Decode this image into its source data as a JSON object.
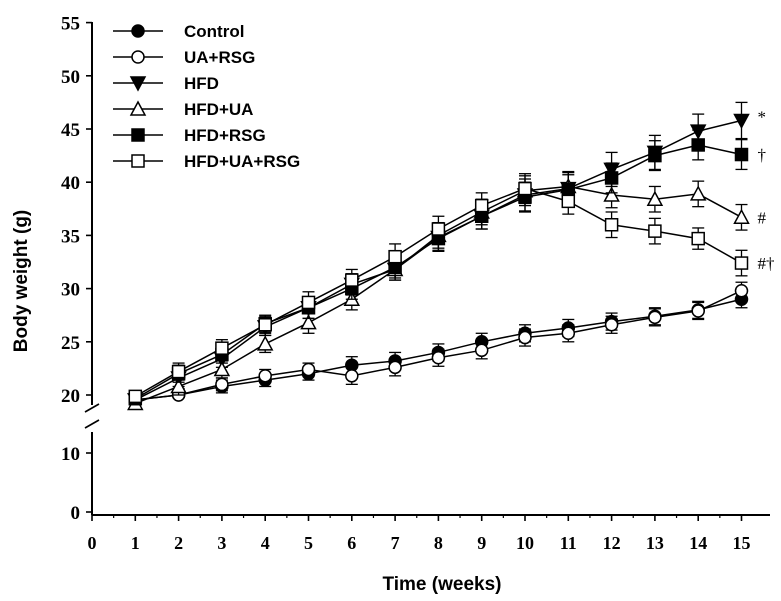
{
  "chart_data": {
    "type": "line",
    "xlabel": "Time (weeks)",
    "ylabel": "Body weight (g)",
    "xlim": [
      0,
      15
    ],
    "x_ticks": [
      0,
      1,
      2,
      3,
      4,
      5,
      6,
      7,
      8,
      9,
      10,
      11,
      12,
      13,
      14,
      15
    ],
    "y_ticks_lower": [
      0,
      10
    ],
    "y_ticks_upper": [
      20,
      25,
      30,
      35,
      40,
      45,
      50,
      55
    ],
    "y_axis_break": [
      10,
      20
    ],
    "grid": false,
    "legend_position": "top-left",
    "x": [
      1,
      2,
      3,
      4,
      5,
      6,
      7,
      8,
      9,
      10,
      11,
      12,
      13,
      14,
      15
    ],
    "series": [
      {
        "name": "Control",
        "marker": "circle-filled",
        "values": [
          19.0,
          20.0,
          20.8,
          21.4,
          22.0,
          22.8,
          23.2,
          24.0,
          25.0,
          25.8,
          26.3,
          26.9,
          27.4,
          28.0,
          29.0
        ],
        "errors": [
          0.6,
          0.6,
          0.6,
          0.6,
          0.6,
          0.8,
          0.8,
          0.8,
          0.8,
          0.8,
          0.8,
          0.8,
          0.8,
          0.8,
          0.8
        ]
      },
      {
        "name": "UA+RSG",
        "marker": "circle-open",
        "values": [
          19.0,
          20.0,
          21.0,
          21.8,
          22.4,
          21.8,
          22.6,
          23.5,
          24.2,
          25.4,
          25.8,
          26.6,
          27.3,
          27.9,
          29.8
        ],
        "errors": [
          0.6,
          0.6,
          0.6,
          0.6,
          0.6,
          0.8,
          0.8,
          0.8,
          0.8,
          0.8,
          0.8,
          0.8,
          0.8,
          0.8,
          0.8
        ]
      },
      {
        "name": "HFD",
        "marker": "triangle-down-filled",
        "values": [
          19.0,
          21.6,
          23.4,
          26.4,
          28.2,
          30.4,
          31.8,
          34.8,
          36.8,
          38.8,
          39.4,
          41.2,
          42.8,
          44.8,
          45.8
        ],
        "errors": [
          0.6,
          0.8,
          0.8,
          0.8,
          1.0,
          1.0,
          1.0,
          1.2,
          1.2,
          1.5,
          1.5,
          1.6,
          1.6,
          1.6,
          1.7
        ]
      },
      {
        "name": "HFD+UA",
        "marker": "triangle-up-open",
        "values": [
          18.4,
          20.8,
          22.4,
          24.8,
          26.8,
          29.0,
          31.8,
          35.0,
          37.2,
          39.2,
          39.6,
          38.8,
          38.4,
          38.9,
          36.7
        ],
        "errors": [
          0.6,
          0.8,
          0.8,
          0.8,
          1.0,
          1.0,
          1.0,
          1.2,
          1.2,
          1.4,
          1.4,
          1.2,
          1.2,
          1.2,
          1.2
        ]
      },
      {
        "name": "HFD+RSG",
        "marker": "square-filled",
        "values": [
          19.2,
          22.0,
          23.8,
          26.7,
          28.2,
          30.0,
          32.0,
          34.7,
          36.8,
          38.6,
          39.3,
          40.4,
          42.5,
          43.5,
          42.6
        ],
        "errors": [
          0.6,
          0.8,
          0.8,
          0.8,
          1.0,
          1.0,
          1.0,
          1.2,
          1.2,
          1.4,
          1.4,
          1.4,
          1.4,
          1.4,
          1.4
        ]
      },
      {
        "name": "HFD+UA+RSG",
        "marker": "square-open",
        "values": [
          19.6,
          22.2,
          24.4,
          26.6,
          28.7,
          30.8,
          33.0,
          35.6,
          37.8,
          39.4,
          38.2,
          36.0,
          35.4,
          34.7,
          32.4
        ],
        "errors": [
          0.6,
          0.8,
          0.8,
          0.8,
          1.0,
          1.0,
          1.2,
          1.2,
          1.2,
          1.4,
          1.2,
          1.2,
          1.2,
          1.0,
          1.2
        ]
      }
    ],
    "annotations": [
      {
        "series": "HFD",
        "text": "*"
      },
      {
        "series": "HFD+RSG",
        "text": "†"
      },
      {
        "series": "HFD+UA",
        "text": "#"
      },
      {
        "series": "HFD+UA+RSG",
        "text": "#†"
      }
    ]
  }
}
